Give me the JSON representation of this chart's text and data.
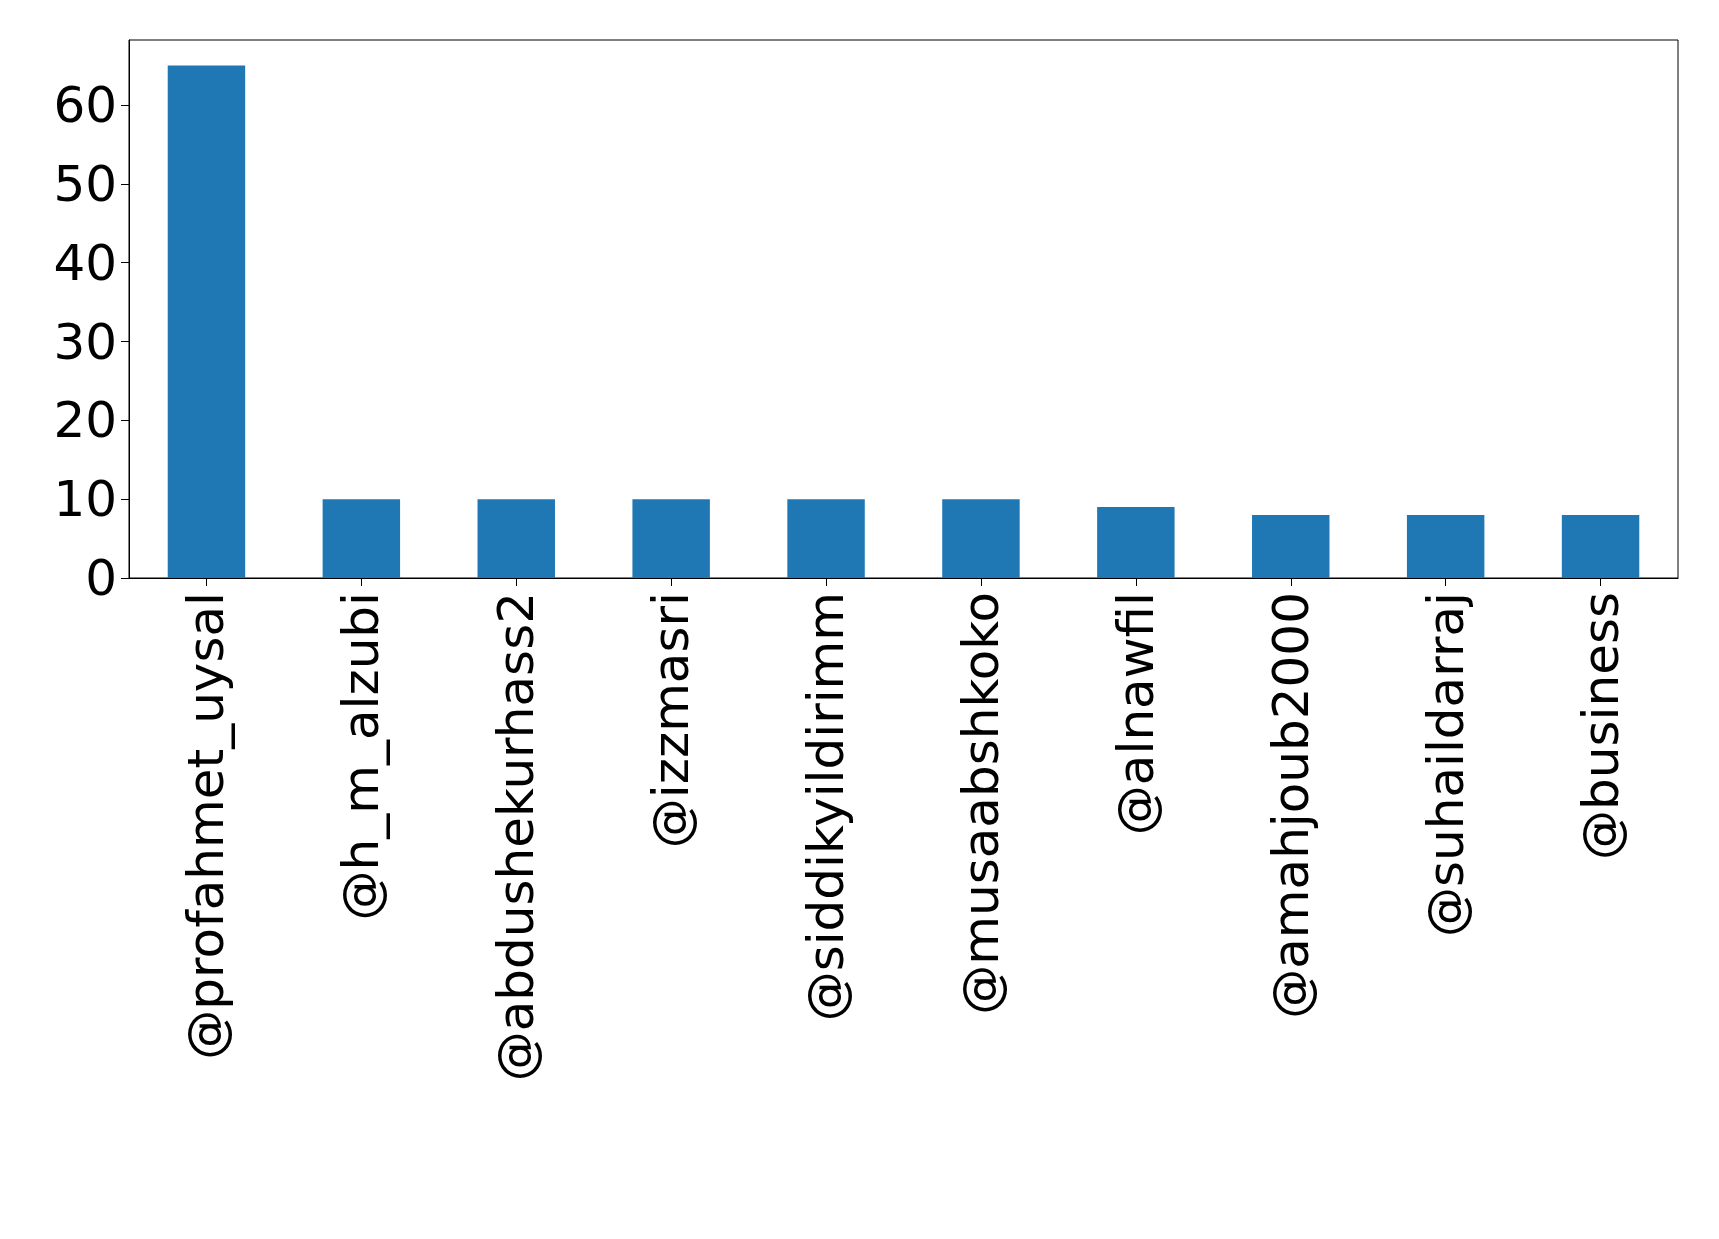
{
  "chart_data": {
    "type": "bar",
    "categories": [
      "@profahmet_uysal",
      "@h_m_alzubi",
      "@abdushekurhass2",
      "@izzmasri",
      "@siddikyildirimm",
      "@musaabshkoko",
      "@alnawfil",
      "@amahjoub2000",
      "@suhaildarraj",
      "@business"
    ],
    "values": [
      65,
      10,
      10,
      10,
      10,
      10,
      9,
      8,
      8,
      8
    ],
    "color": "#1f77b4",
    "ylim": [
      0,
      68.25
    ],
    "yticks": [
      0,
      10,
      20,
      30,
      40,
      50,
      60
    ],
    "grid": false
  }
}
